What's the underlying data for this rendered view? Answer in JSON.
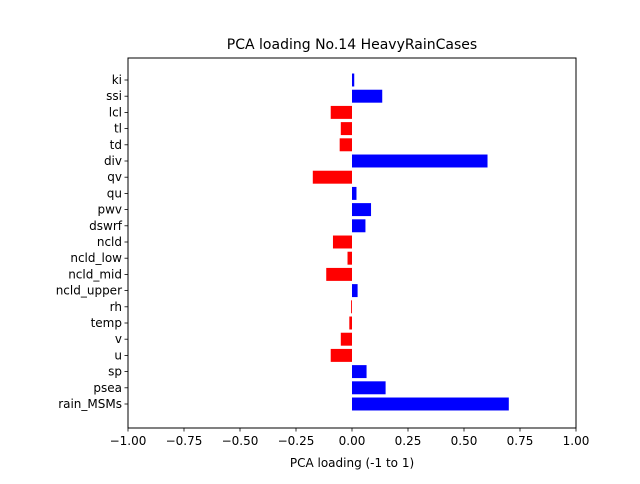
{
  "chart_data": {
    "type": "bar",
    "orientation": "horizontal",
    "title": "PCA loading No.14 HeavyRainCases",
    "xlabel": "PCA loading (-1 to 1)",
    "ylabel": "",
    "xlim": [
      -1.0,
      1.0
    ],
    "xticks": [
      -1.0,
      -0.75,
      -0.5,
      -0.25,
      0.0,
      0.25,
      0.5,
      0.75,
      1.0
    ],
    "xtick_labels": [
      "−1.00",
      "−0.75",
      "−0.50",
      "−0.25",
      "0.00",
      "0.25",
      "0.50",
      "0.75",
      "1.00"
    ],
    "categories": [
      "rain_MSMs",
      "psea",
      "sp",
      "u",
      "v",
      "temp",
      "rh",
      "ncld_upper",
      "ncld_mid",
      "ncld_low",
      "ncld",
      "dswrf",
      "pwv",
      "qu",
      "qv",
      "div",
      "td",
      "tl",
      "lcl",
      "ssi",
      "ki"
    ],
    "values": [
      0.7,
      0.15,
      0.065,
      -0.095,
      -0.05,
      -0.012,
      -0.004,
      0.025,
      -0.115,
      -0.02,
      -0.085,
      0.06,
      0.085,
      0.02,
      -0.175,
      0.605,
      -0.055,
      -0.05,
      -0.095,
      0.135,
      0.01
    ],
    "positive_color": "#0000ff",
    "negative_color": "#ff0000",
    "grid": false,
    "legend": "none"
  }
}
